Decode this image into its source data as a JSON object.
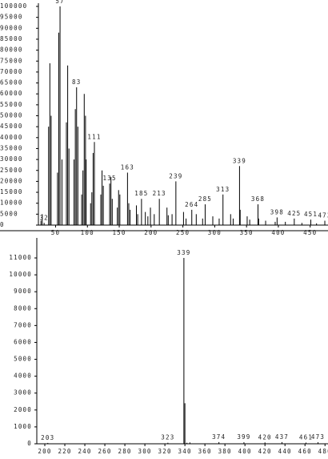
{
  "chart_data": [
    {
      "type": "stem",
      "xlim": [
        23,
        478
      ],
      "ylim": [
        0,
        100000
      ],
      "xticks": [
        50,
        100,
        150,
        200,
        250,
        300,
        350,
        400,
        450
      ],
      "yticks": [
        0,
        5000,
        10000,
        15000,
        20000,
        25000,
        30000,
        35000,
        40000,
        45000,
        50000,
        55000,
        60000,
        65000,
        70000,
        75000,
        80000,
        85000,
        90000,
        95000,
        100000
      ],
      "peaks": {
        "x": [
          27,
          29,
          39,
          41,
          43,
          53,
          55,
          60,
          67,
          69,
          71,
          79,
          81,
          85,
          91,
          93,
          95,
          97,
          98,
          105,
          107,
          109,
          121,
          123,
          125,
          137,
          139,
          147,
          149,
          151,
          165,
          167,
          177,
          179,
          191,
          195,
          199,
          205,
          225,
          227,
          233,
          251,
          255,
          271,
          281,
          297,
          307,
          325,
          329,
          340,
          351,
          355,
          369,
          380,
          395,
          411,
          437,
          460
        ],
        "values": [
          2000,
          5000,
          45000,
          74000,
          50000,
          24000,
          88000,
          30000,
          47000,
          73000,
          35000,
          30000,
          53000,
          45000,
          14000,
          25000,
          60000,
          50000,
          30000,
          10000,
          15000,
          33000,
          14000,
          25000,
          18000,
          22000,
          12000,
          8000,
          16000,
          14000,
          10000,
          7000,
          9000,
          5000,
          6000,
          4000,
          8000,
          5000,
          8000,
          4500,
          5000,
          6000,
          3000,
          5000,
          3000,
          4000,
          3000,
          5000,
          3000,
          7000,
          4000,
          2500,
          3000,
          2000,
          1500,
          1500,
          1000,
          800
        ]
      },
      "labeled_peaks": {
        "x": [
          32,
          57,
          83,
          111,
          135,
          163,
          185,
          213,
          239,
          264,
          285,
          313,
          339,
          368,
          398,
          425,
          451,
          473
        ],
        "values": [
          1000,
          100000,
          63000,
          38000,
          19000,
          24000,
          12000,
          12000,
          20000,
          7000,
          9500,
          14000,
          27000,
          9500,
          3500,
          3000,
          2500,
          2000
        ]
      }
    },
    {
      "type": "stem",
      "xlim": [
        192,
        483
      ],
      "ylim": [
        0,
        11000
      ],
      "xticks": [
        200,
        220,
        240,
        260,
        280,
        300,
        320,
        340,
        360,
        380,
        400,
        420,
        440,
        460,
        480
      ],
      "yticks": [
        0,
        1000,
        2000,
        3000,
        4000,
        5000,
        6000,
        7000,
        8000,
        9000,
        10000,
        11000
      ],
      "peaks": {
        "x": [
          340,
          342,
          345
        ],
        "values": [
          2400,
          60,
          80
        ]
      },
      "labeled_peaks": {
        "x": [
          203,
          323,
          339,
          374,
          399,
          420,
          437,
          461,
          473
        ],
        "values": [
          50,
          60,
          11000,
          100,
          90,
          80,
          100,
          70,
          90
        ]
      }
    }
  ]
}
